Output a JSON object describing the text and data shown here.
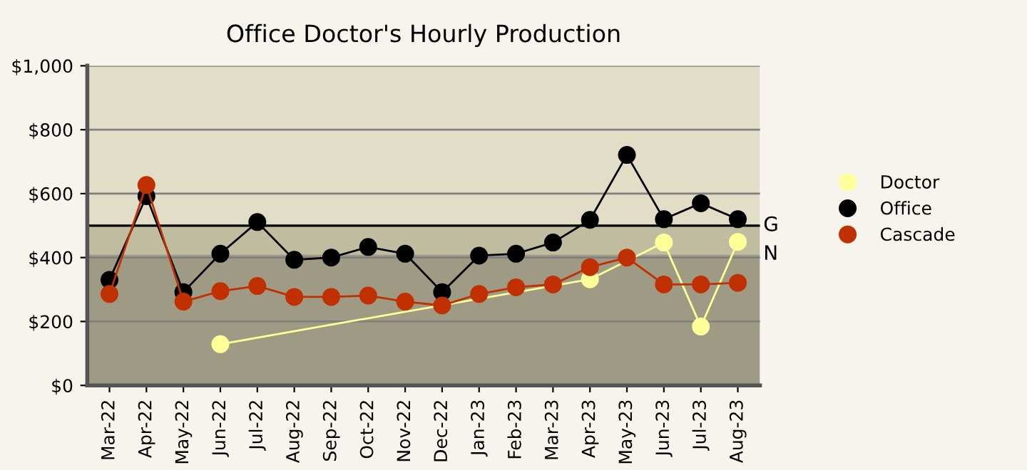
{
  "chart_data": {
    "type": "line",
    "title": "Office Doctor's Hourly Production",
    "categories": [
      "Mar-22",
      "Apr-22",
      "May-22",
      "Jun-22",
      "Jul-22",
      "Aug-22",
      "Sep-22",
      "Oct-22",
      "Nov-22",
      "Dec-22",
      "Jan-23",
      "Feb-23",
      "Mar-23",
      "Apr-23",
      "May-23",
      "Jun-23",
      "Jul-23",
      "Aug-23"
    ],
    "series": [
      {
        "name": "Doctor",
        "color": "#ffff99",
        "values": [
          null,
          null,
          null,
          129,
          null,
          null,
          null,
          null,
          null,
          null,
          null,
          null,
          null,
          332,
          null,
          447,
          184,
          449
        ]
      },
      {
        "name": "Office",
        "color": "#000000",
        "values": [
          330,
          592,
          292,
          412,
          511,
          393,
          400,
          433,
          412,
          292,
          406,
          412,
          447,
          518,
          721,
          520,
          570,
          520
        ]
      },
      {
        "name": "Cascade",
        "color": "#c03000",
        "values": [
          286,
          627,
          262,
          295,
          311,
          277,
          277,
          281,
          262,
          250,
          286,
          307,
          316,
          370,
          400,
          316,
          316,
          321
        ]
      }
    ],
    "ylim": [
      0,
      1000
    ],
    "yticks": [
      {
        "value": 0,
        "label": "$0"
      },
      {
        "value": 200,
        "label": "$200"
      },
      {
        "value": 400,
        "label": "$400"
      },
      {
        "value": 600,
        "label": "$600"
      },
      {
        "value": 800,
        "label": "$800"
      },
      {
        "value": 1000,
        "label": "$1,000"
      }
    ],
    "grid": "y",
    "legend": "right",
    "marker": "circle",
    "line_style": "solid",
    "ref_lines": [
      {
        "axis": "y",
        "value": 500,
        "label": "G",
        "color": "#000000",
        "line_style": "solid"
      }
    ],
    "bands": [
      {
        "axis": "y",
        "from": 500,
        "to": 1000,
        "color": "#e2ddc6"
      },
      {
        "axis": "y",
        "from": 410,
        "to": 500,
        "color": "#bfbca0"
      },
      {
        "axis": "y",
        "from": 0,
        "to": 410,
        "color": "#9e9a84",
        "label": "N"
      }
    ]
  }
}
